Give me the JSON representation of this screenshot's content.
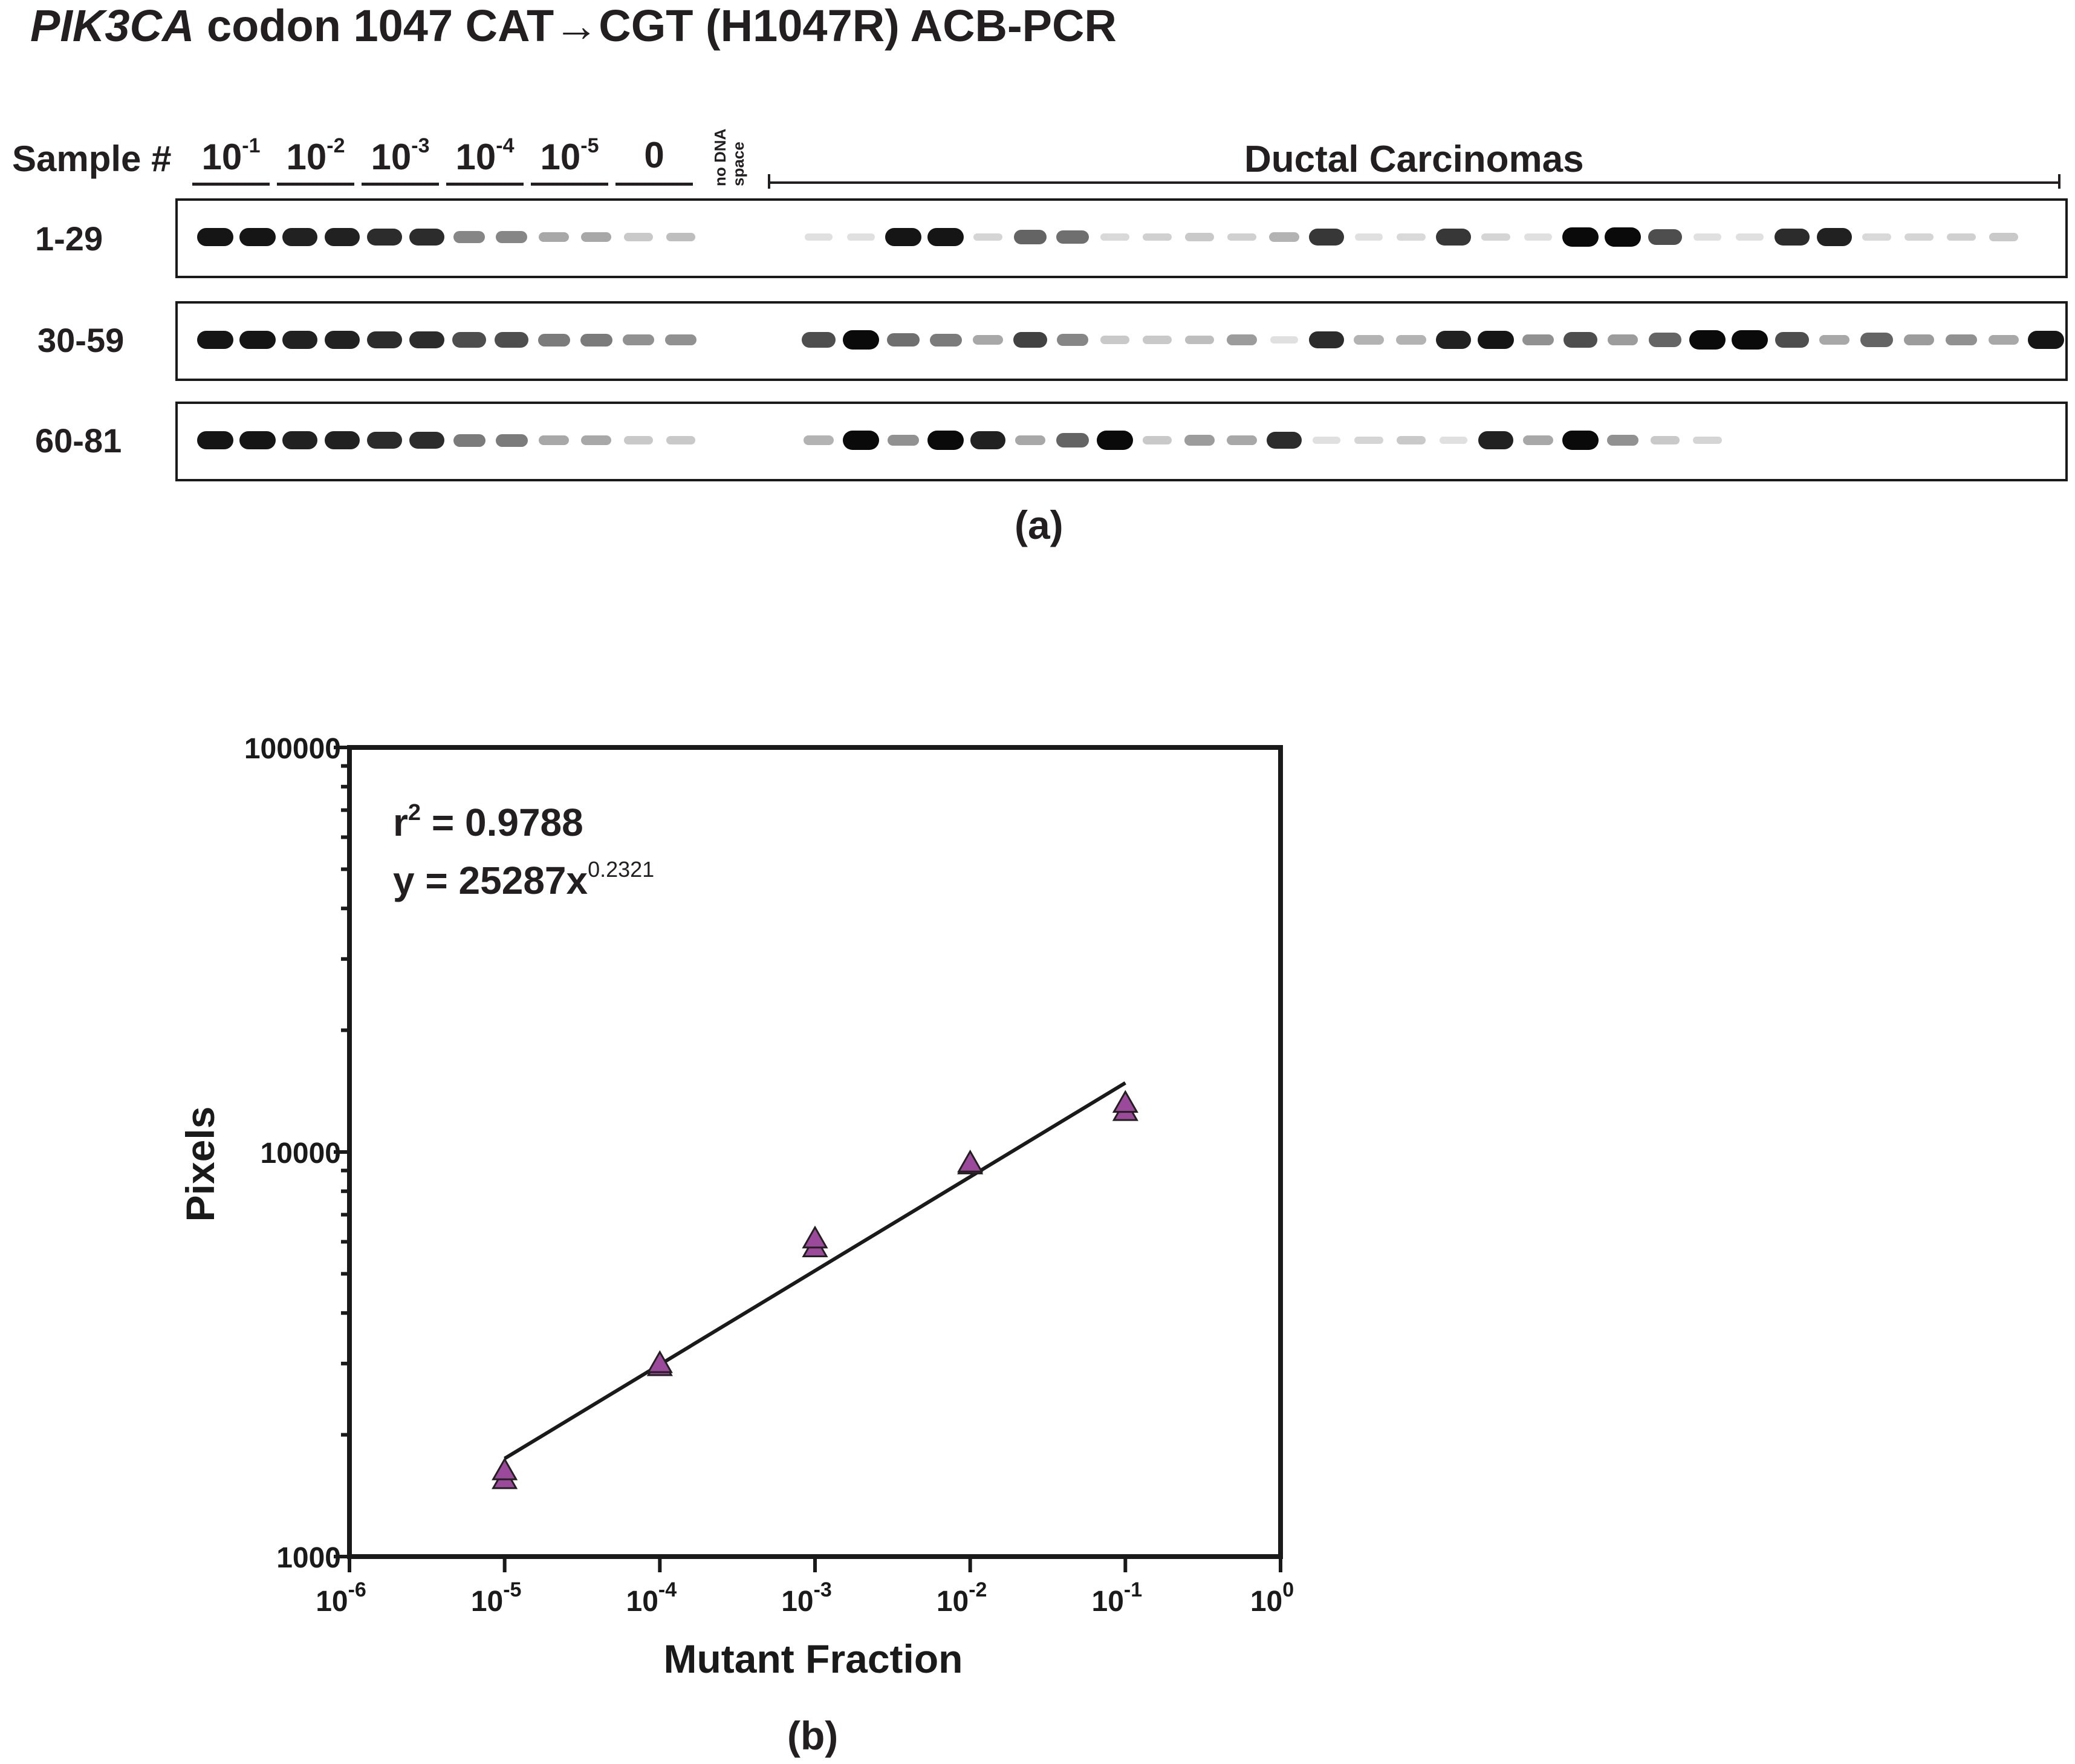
{
  "figure": {
    "title_gene": "PIK3CA",
    "title_rest": " codon 1047 CAT→CGT (H1047R) ACB-PCR",
    "panel_a_label": "(a)",
    "panel_b_label": "(b)"
  },
  "gel": {
    "sample_header": "Sample #",
    "dilutions": [
      {
        "base": "10",
        "exp": "-1"
      },
      {
        "base": "10",
        "exp": "-2"
      },
      {
        "base": "10",
        "exp": "-3"
      },
      {
        "base": "10",
        "exp": "-4"
      },
      {
        "base": "10",
        "exp": "-5"
      },
      {
        "base": "0",
        "exp": ""
      }
    ],
    "no_dna_label": "no DNA",
    "space_label": "space",
    "group_label": "Ductal Carcinomas",
    "rows": [
      {
        "label": "1-29",
        "standards": [
          0.95,
          0.95,
          0.9,
          0.9,
          0.85,
          0.85,
          0.45,
          0.45,
          0.3,
          0.3,
          0.15,
          0.2
        ],
        "samples": [
          0.05,
          0.05,
          0.95,
          0.95,
          0.1,
          0.6,
          0.55,
          0.08,
          0.12,
          0.15,
          0.12,
          0.25,
          0.8,
          0.05,
          0.08,
          0.8,
          0.1,
          0.05,
          1.0,
          1.0,
          0.7,
          0.05,
          0.05,
          0.85,
          0.9,
          0.08,
          0.1,
          0.12,
          0.15
        ]
      },
      {
        "label": "30-59",
        "standards": [
          0.95,
          0.95,
          0.9,
          0.9,
          0.85,
          0.85,
          0.7,
          0.7,
          0.5,
          0.5,
          0.4,
          0.4
        ],
        "samples": [
          0.7,
          1.0,
          0.55,
          0.5,
          0.3,
          0.75,
          0.45,
          0.15,
          0.15,
          0.2,
          0.35,
          0.05,
          0.85,
          0.25,
          0.25,
          0.9,
          0.95,
          0.4,
          0.7,
          0.35,
          0.6,
          1.0,
          1.0,
          0.7,
          0.3,
          0.6,
          0.35,
          0.4,
          0.3,
          0.95
        ]
      },
      {
        "label": "60-81",
        "standards": [
          0.95,
          0.95,
          0.9,
          0.9,
          0.85,
          0.85,
          0.5,
          0.5,
          0.3,
          0.3,
          0.15,
          0.15
        ],
        "samples": [
          0.25,
          1.0,
          0.4,
          1.0,
          0.9,
          0.3,
          0.6,
          1.0,
          0.15,
          0.35,
          0.3,
          0.85,
          0.05,
          0.1,
          0.15,
          0.05,
          0.9,
          0.3,
          1.0,
          0.4,
          0.15,
          0.1
        ]
      }
    ]
  },
  "chart_data": {
    "type": "scatter",
    "xlabel": "Mutant Fraction",
    "ylabel": "Pixels",
    "x_scale": "log",
    "y_scale": "log",
    "xlim": [
      1e-06,
      1
    ],
    "ylim": [
      1000,
      100000
    ],
    "x_ticks": [
      {
        "base": "10",
        "exp": "-6"
      },
      {
        "base": "10",
        "exp": "-5"
      },
      {
        "base": "10",
        "exp": "-4"
      },
      {
        "base": "10",
        "exp": "-3"
      },
      {
        "base": "10",
        "exp": "-2"
      },
      {
        "base": "10",
        "exp": "-1"
      },
      {
        "base": "10",
        "exp": "0"
      }
    ],
    "y_ticks": [
      "1000",
      "10000",
      "100000"
    ],
    "points": [
      {
        "x": 1e-05,
        "y": 1550
      },
      {
        "x": 1e-05,
        "y": 1630
      },
      {
        "x": 0.0001,
        "y": 2950
      },
      {
        "x": 0.0001,
        "y": 3000
      },
      {
        "x": 0.001,
        "y": 5800
      },
      {
        "x": 0.001,
        "y": 6100
      },
      {
        "x": 0.01,
        "y": 9300
      },
      {
        "x": 0.01,
        "y": 9400
      },
      {
        "x": 0.1,
        "y": 12600
      },
      {
        "x": 0.1,
        "y": 13200
      }
    ],
    "fit": {
      "a": 25287,
      "b": 0.2321,
      "x_from": 1e-05,
      "x_to": 0.1
    },
    "annotation_r2_lhs": "r",
    "annotation_r2_sup": "2",
    "annotation_r2_rhs": " = 0.9788",
    "annotation_eq_base": "y = 25287x",
    "annotation_eq_exp": "0.2321",
    "marker_color": "#9b4a9b",
    "marker_edge": "#231f20"
  }
}
